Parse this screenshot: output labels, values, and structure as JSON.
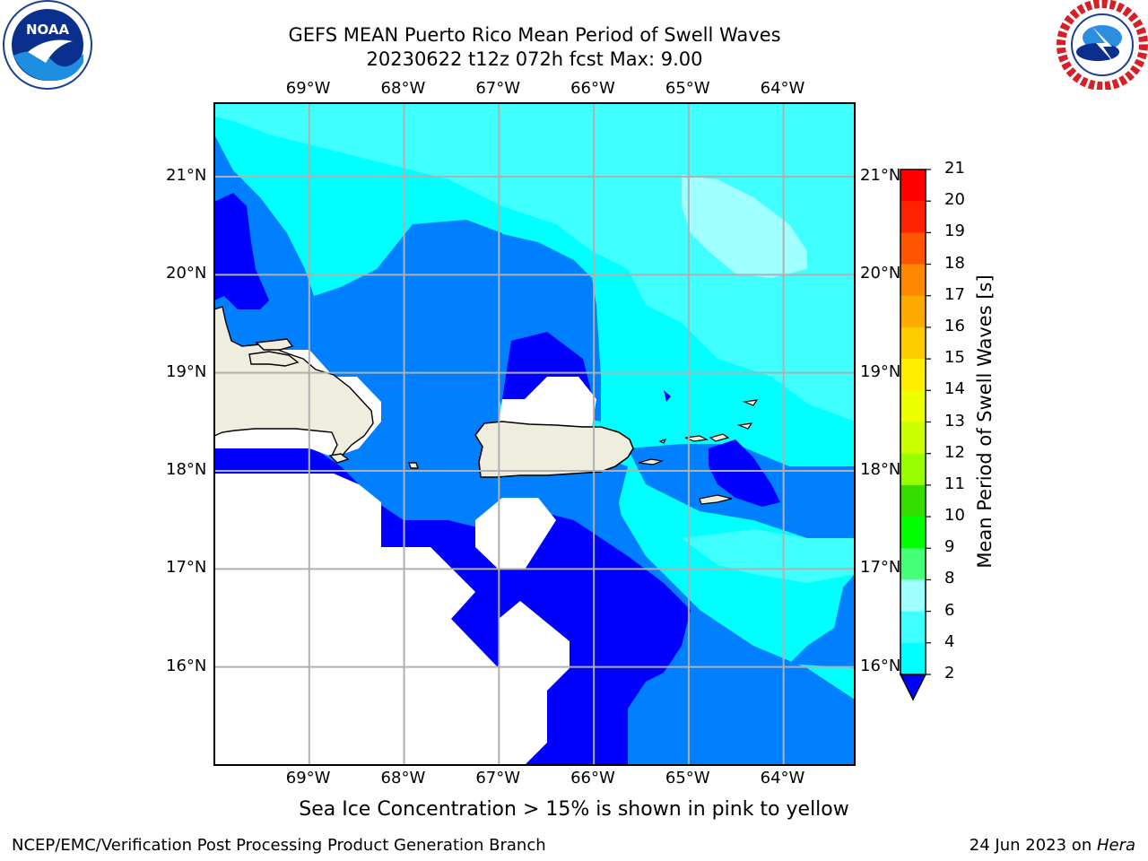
{
  "header": {
    "title_line1": "GEFS MEAN Puerto Rico Mean Period of Swell Waves",
    "title_line2": "20230622 t12z 072h fcst   Max: 9.00"
  },
  "logos": {
    "left": {
      "name": "noaa-logo",
      "text": "NOAA"
    },
    "right": {
      "name": "nws-logo",
      "text": "NATIONAL WEATHER SERVICE"
    }
  },
  "map": {
    "lon_labels": [
      "69°W",
      "68°W",
      "67°W",
      "66°W",
      "65°W",
      "64°W"
    ],
    "lat_labels": [
      "21°N",
      "20°N",
      "19°N",
      "18°N",
      "17°N",
      "16°N"
    ],
    "lon_range": [
      -70,
      -63.25
    ],
    "lat_range": [
      15,
      21.75
    ],
    "land_color": "#efeddd",
    "ocean_colors": {
      "2-4": "#0000ff",
      "4-6": "#0080ff",
      "6-8": "#00ffff",
      "8-9": "#40ffff",
      "9-10": "#a0ffff"
    }
  },
  "colorbar": {
    "label": "Mean Period of Swell Waves [s]",
    "ticks": [
      "21",
      "20",
      "19",
      "18",
      "17",
      "16",
      "15",
      "14",
      "13",
      "12",
      "11",
      "10",
      "9",
      "8",
      "6",
      "4",
      "2"
    ],
    "colors": [
      "#ff0000",
      "#ff2200",
      "#ff5500",
      "#ff8800",
      "#ffaa00",
      "#ffcc00",
      "#ffee00",
      "#eeff00",
      "#ccff00",
      "#99ff00",
      "#33dd00",
      "#00ff00",
      "#44ff77",
      "#a0ffff",
      "#40ffff",
      "#00ffff",
      "#0080ff"
    ],
    "extend_color": "#0000ff"
  },
  "footer": {
    "note": "Sea Ice Concentration > 15% is shown in pink to yellow",
    "credit": "NCEP/EMC/Verification Post Processing Product Generation Branch",
    "date": "24 Jun 2023 on ",
    "machine": "Hera"
  }
}
